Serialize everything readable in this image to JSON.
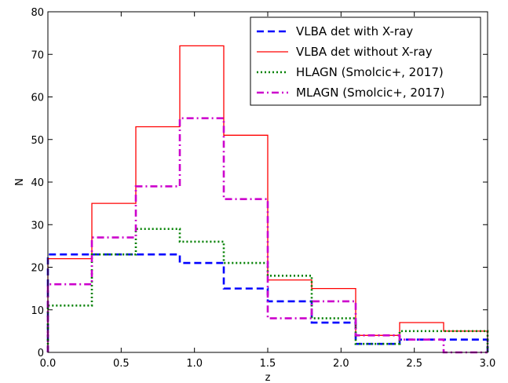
{
  "chart_data": {
    "type": "step",
    "title": "",
    "xlabel": "z",
    "ylabel": "N",
    "xlim": [
      0.0,
      3.0
    ],
    "ylim": [
      0,
      80
    ],
    "grid": false,
    "legend_position": "top-right",
    "x_ticks": [
      "0.0",
      "0.5",
      "1.0",
      "1.5",
      "2.0",
      "2.5",
      "3.0"
    ],
    "y_ticks": [
      "0",
      "10",
      "20",
      "30",
      "40",
      "50",
      "60",
      "70",
      "80"
    ],
    "bin_edges": [
      0.0,
      0.3,
      0.6,
      0.9,
      1.2,
      1.5,
      1.8,
      2.1,
      2.4,
      2.7,
      3.0
    ],
    "series": [
      {
        "name": "VLBA det with X-ray",
        "color": "#0000ff",
        "style": "dashed",
        "values": [
          23,
          23,
          23,
          21,
          15,
          12,
          7,
          2,
          3,
          3
        ]
      },
      {
        "name": "VLBA det without X-ray",
        "color": "#ff0000",
        "style": "solid",
        "values": [
          22,
          35,
          53,
          72,
          51,
          17,
          15,
          4,
          7,
          5
        ]
      },
      {
        "name": "HLAGN (Smolcic+, 2017)",
        "color": "#008000",
        "style": "dotted",
        "values": [
          11,
          23,
          29,
          26,
          21,
          18,
          8,
          2,
          5,
          5
        ]
      },
      {
        "name": "MLAGN (Smolcic+, 2017)",
        "color": "#cc00cc",
        "style": "dashdot",
        "values": [
          16,
          27,
          39,
          55,
          36,
          8,
          12,
          4,
          3,
          0
        ]
      }
    ]
  }
}
